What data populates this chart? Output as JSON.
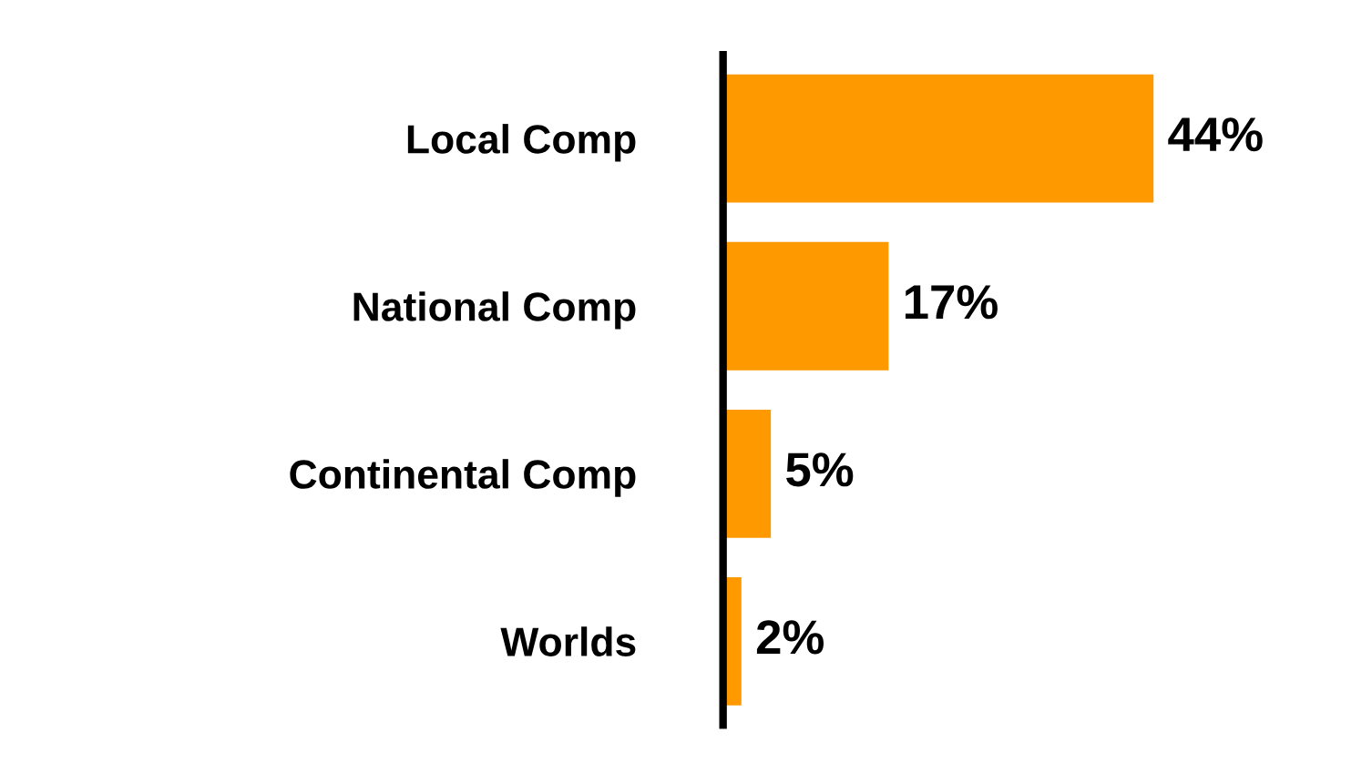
{
  "chart_data": {
    "type": "bar",
    "orientation": "horizontal",
    "categories": [
      "Local Comp",
      "National Comp",
      "Continental Comp",
      "Worlds"
    ],
    "values": [
      44,
      17,
      5,
      2
    ],
    "color": "#ff9900",
    "value_labels": [
      "44%",
      "17%",
      "5%",
      "2%"
    ],
    "grid": false,
    "legend": false,
    "tick_labels": "y"
  }
}
